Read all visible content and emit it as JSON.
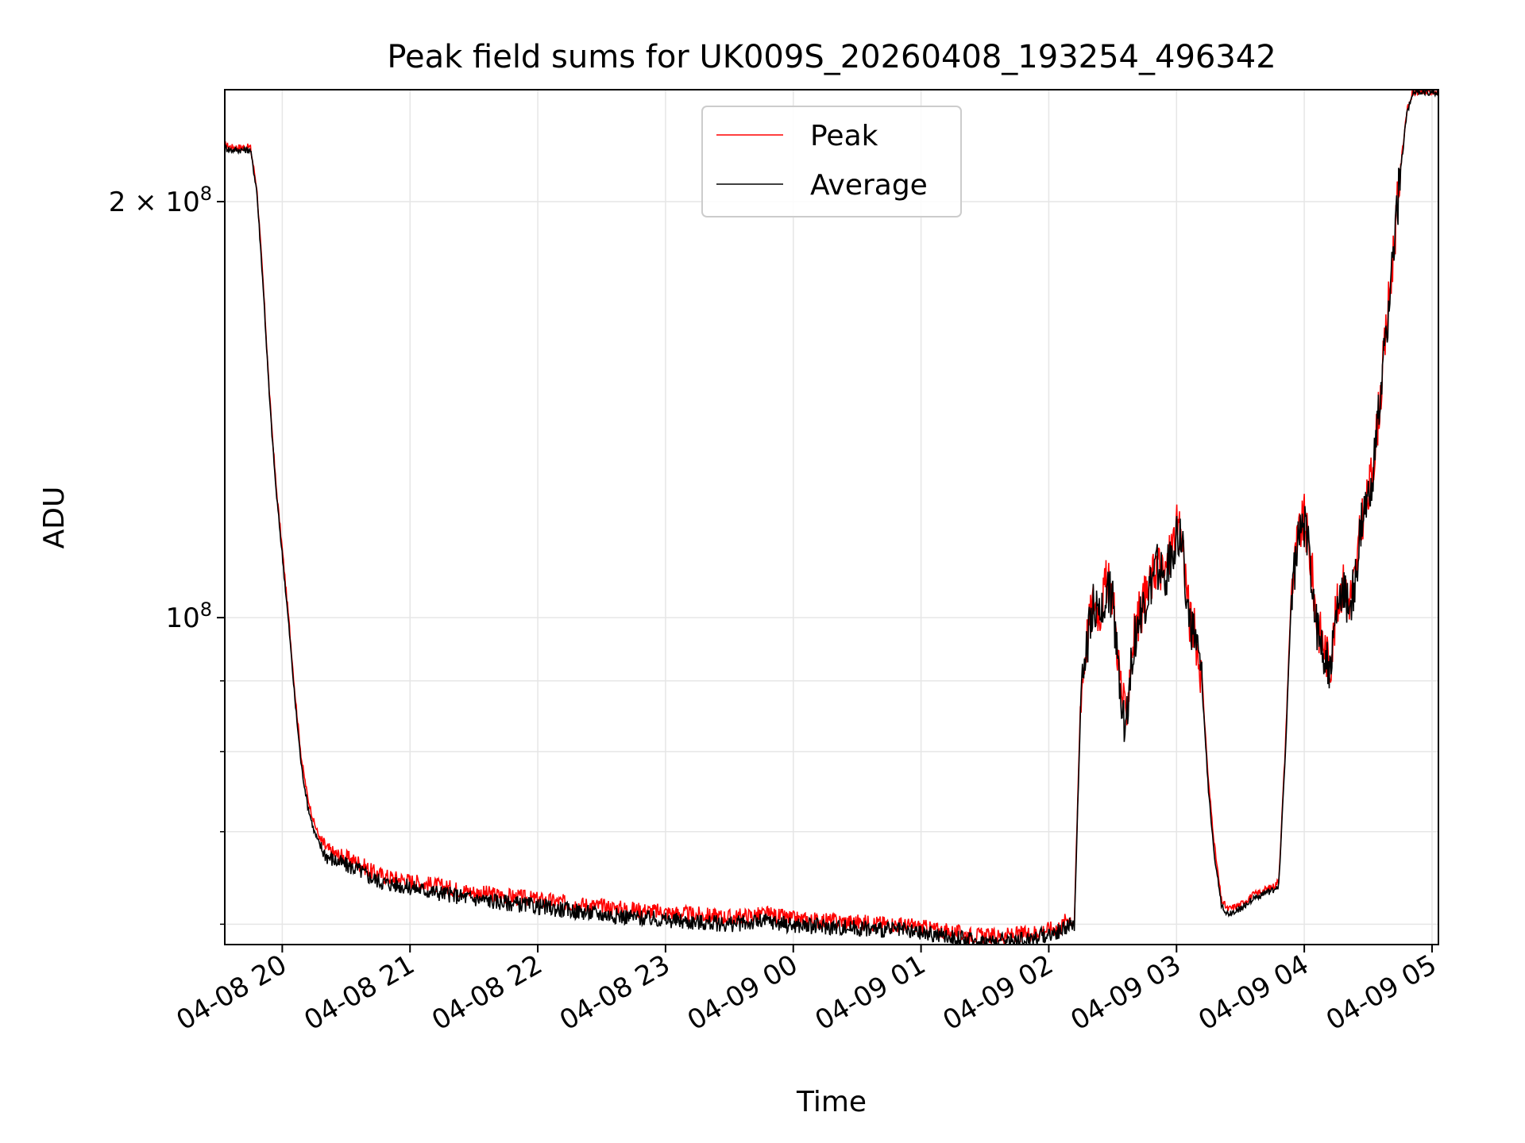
{
  "chart_data": {
    "type": "line",
    "title": "Peak field sums for UK009S_20260408_193254_496342",
    "xlabel": "Time",
    "ylabel": "ADU",
    "yscale": "log",
    "grid": true,
    "legend_position": "top-center",
    "xlim_hours": [
      19.55,
      29.05
    ],
    "ylim": [
      58000000,
      241000000
    ],
    "x_ticks": [
      {
        "value": 20,
        "label": "04-08 20"
      },
      {
        "value": 21,
        "label": "04-08 21"
      },
      {
        "value": 22,
        "label": "04-08 22"
      },
      {
        "value": 23,
        "label": "04-08 23"
      },
      {
        "value": 24,
        "label": "04-09 00"
      },
      {
        "value": 25,
        "label": "04-09 01"
      },
      {
        "value": 26,
        "label": "04-09 02"
      },
      {
        "value": 27,
        "label": "04-09 03"
      },
      {
        "value": 28,
        "label": "04-09 04"
      },
      {
        "value": 29,
        "label": "04-09 05"
      }
    ],
    "y_major_ticks": [
      {
        "value": 100000000,
        "label": "10^8",
        "base": "10",
        "exp": "8"
      },
      {
        "value": 200000000,
        "label": "2×10^8",
        "base": "2 × 10",
        "exp": "8"
      }
    ],
    "y_minor_ticks": [
      60000000,
      70000000,
      80000000,
      90000000
    ],
    "x_unit_note": "hours since 2026-04-08 00:00",
    "series": [
      {
        "name": "Peak",
        "color": "#ff0000",
        "x": [
          19.55,
          19.6,
          19.75,
          19.8,
          19.85,
          19.9,
          19.95,
          20.0,
          20.05,
          20.1,
          20.15,
          20.2,
          20.25,
          20.3,
          20.35,
          20.4,
          20.5,
          20.6,
          20.65,
          20.7,
          20.8,
          21.0,
          21.2,
          21.5,
          22.0,
          22.5,
          23.0,
          23.5,
          23.8,
          24.0,
          24.5,
          24.8,
          25.0,
          25.2,
          25.4,
          25.6,
          25.8,
          26.0,
          26.1,
          26.15,
          26.2,
          26.25,
          26.3,
          26.35,
          26.4,
          26.45,
          26.5,
          26.55,
          26.6,
          26.65,
          26.7,
          26.75,
          26.8,
          26.85,
          26.9,
          26.95,
          27.0,
          27.05,
          27.1,
          27.15,
          27.2,
          27.25,
          27.3,
          27.35,
          27.4,
          27.5,
          27.6,
          27.7,
          27.75,
          27.8,
          27.85,
          27.9,
          27.95,
          28.0,
          28.05,
          28.1,
          28.15,
          28.2,
          28.25,
          28.3,
          28.35,
          28.4,
          28.45,
          28.5,
          28.55,
          28.6,
          28.65,
          28.7,
          28.75,
          28.8,
          28.85,
          28.9,
          29.0,
          29.05
        ],
        "y": [
          220000000,
          219000000,
          219000000,
          205000000,
          175000000,
          145000000,
          125000000,
          112000000,
          100000000,
          88000000,
          79000000,
          74000000,
          71000000,
          69000000,
          68000000,
          67500000,
          67000000,
          66500000,
          66000000,
          65500000,
          65000000,
          64500000,
          64000000,
          63300000,
          62500000,
          61800000,
          61200000,
          60700000,
          61000000,
          60500000,
          60200000,
          60000000,
          59700000,
          59300000,
          58900000,
          58800000,
          59000000,
          59500000,
          59800000,
          60800000,
          60200000,
          88000000,
          97000000,
          103000000,
          101000000,
          106000000,
          104000000,
          92000000,
          84000000,
          95000000,
          100000000,
          103000000,
          106000000,
          110000000,
          107000000,
          111000000,
          116000000,
          113000000,
          100000000,
          97000000,
          90000000,
          76000000,
          68000000,
          62500000,
          61500000,
          62000000,
          63000000,
          63600000,
          63800000,
          64500000,
          80000000,
          105000000,
          114000000,
          118000000,
          110000000,
          99000000,
          96000000,
          92000000,
          101000000,
          106000000,
          103000000,
          107000000,
          118000000,
          122000000,
          132000000,
          146000000,
          165000000,
          185000000,
          210000000,
          232000000,
          240000000,
          240000000,
          240000000,
          240000000
        ]
      },
      {
        "name": "Average",
        "color": "#000000",
        "x": [
          19.55,
          19.6,
          19.75,
          19.8,
          19.85,
          19.9,
          19.95,
          20.0,
          20.05,
          20.1,
          20.15,
          20.2,
          20.25,
          20.3,
          20.35,
          20.4,
          20.5,
          20.6,
          20.65,
          20.7,
          20.8,
          21.0,
          21.2,
          21.5,
          22.0,
          22.5,
          23.0,
          23.5,
          23.8,
          24.0,
          24.5,
          24.8,
          25.0,
          25.2,
          25.4,
          25.6,
          25.8,
          26.0,
          26.1,
          26.15,
          26.2,
          26.25,
          26.3,
          26.35,
          26.4,
          26.45,
          26.5,
          26.55,
          26.6,
          26.65,
          26.7,
          26.75,
          26.8,
          26.85,
          26.9,
          26.95,
          27.0,
          27.05,
          27.1,
          27.15,
          27.2,
          27.25,
          27.3,
          27.35,
          27.4,
          27.5,
          27.6,
          27.7,
          27.75,
          27.8,
          27.85,
          27.9,
          27.95,
          28.0,
          28.05,
          28.1,
          28.15,
          28.2,
          28.25,
          28.3,
          28.35,
          28.4,
          28.45,
          28.5,
          28.55,
          28.6,
          28.65,
          28.7,
          28.75,
          28.8,
          28.85,
          28.9,
          29.0,
          29.05
        ],
        "y": [
          219000000,
          218000000,
          218000000,
          204000000,
          174000000,
          144000000,
          124000000,
          111000000,
          99000000,
          87000000,
          78000000,
          73000000,
          70000000,
          68200000,
          67200000,
          66800000,
          66200000,
          65700000,
          65200000,
          64800000,
          64300000,
          63800000,
          63300000,
          62600000,
          61800000,
          61000000,
          60400000,
          60000000,
          60300000,
          59900000,
          59600000,
          59400000,
          59100000,
          58800000,
          58400000,
          58300000,
          58500000,
          59000000,
          59300000,
          60000000,
          59600000,
          87000000,
          96000000,
          102000000,
          100000000,
          105000000,
          103000000,
          91000000,
          83000000,
          94000000,
          99000000,
          102000000,
          105000000,
          109000000,
          106000000,
          110000000,
          115000000,
          112000000,
          99000000,
          96000000,
          89000000,
          75000000,
          67000000,
          62000000,
          61000000,
          61600000,
          62600000,
          63200000,
          63400000,
          64100000,
          79000000,
          104000000,
          113000000,
          117000000,
          109000000,
          98000000,
          95000000,
          91000000,
          100000000,
          105000000,
          102000000,
          106000000,
          117000000,
          121000000,
          131000000,
          145000000,
          164000000,
          184000000,
          209000000,
          231000000,
          240000000,
          240000000,
          240000000,
          240000000
        ]
      }
    ]
  }
}
